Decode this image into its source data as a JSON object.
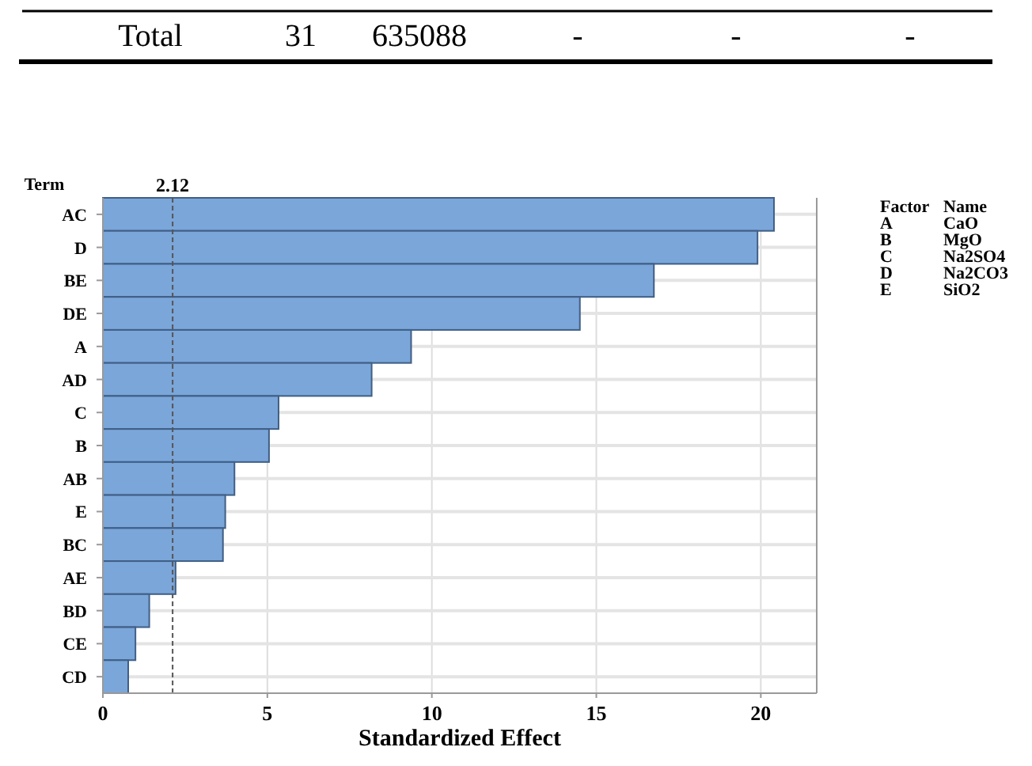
{
  "chart_data": {
    "type": "bar",
    "orientation": "horizontal",
    "ylabel": "Term",
    "xlabel": "Standardized Effect",
    "categories": [
      "AC",
      "D",
      "BE",
      "DE",
      "A",
      "AD",
      "C",
      "B",
      "AB",
      "E",
      "BC",
      "AE",
      "BD",
      "CE",
      "CD"
    ],
    "values": [
      20.4,
      19.9,
      16.75,
      14.5,
      9.37,
      8.17,
      5.34,
      5.05,
      4.0,
      3.72,
      3.65,
      2.21,
      1.41,
      0.99,
      0.77
    ],
    "color": "#7ba6d9",
    "xlim": [
      0,
      21.7
    ],
    "xticks": [
      0,
      5,
      10,
      15,
      20
    ],
    "grid": true,
    "ref_lines": [
      {
        "axis": "x",
        "value": 2.12,
        "label": "2.12",
        "line_style": "dashed",
        "color": "#555555"
      }
    ],
    "annotations": [
      "Total",
      "31",
      "635088",
      "-",
      "-",
      "-",
      "Factor",
      "Name",
      "A",
      "CaO",
      "B",
      "MgO",
      "C",
      "Na2SO4",
      "D",
      "Na2CO3",
      "E",
      "SiO2"
    ]
  }
}
